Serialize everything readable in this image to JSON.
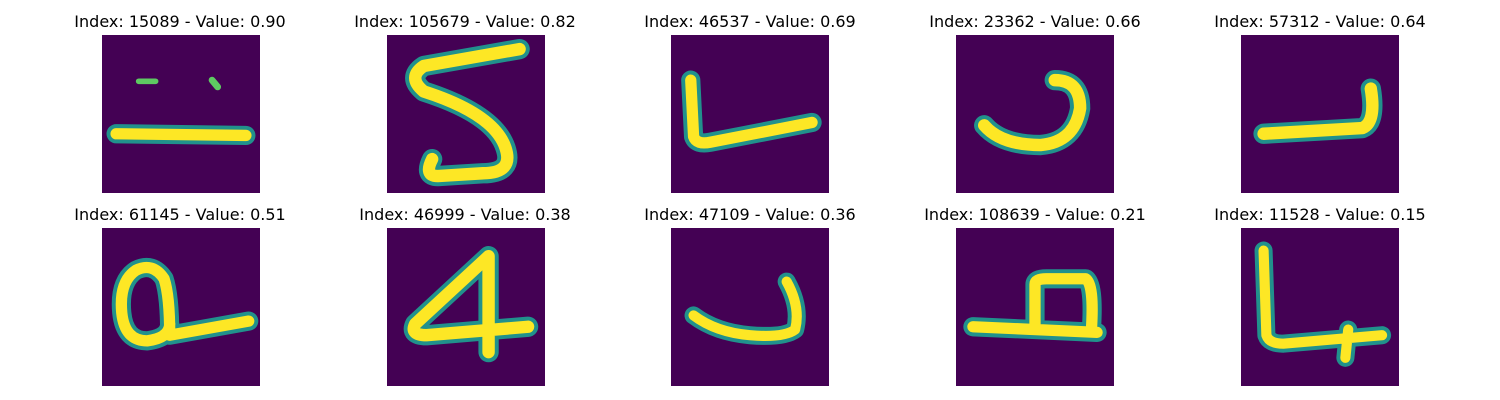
{
  "figure": {
    "colormap": "viridis",
    "colors": {
      "background": "#440154",
      "edge": "#21918c",
      "mid": "#5ec962",
      "peak": "#fde725"
    },
    "panels": [
      {
        "title": "Index: 15089 - Value: 0.90",
        "glyph": "underscore-digit"
      },
      {
        "title": "Index: 105679 - Value: 0.82",
        "glyph": "digit-5"
      },
      {
        "title": "Index: 46537 - Value: 0.69",
        "glyph": "l-shape"
      },
      {
        "title": "Index: 23362 - Value: 0.66",
        "glyph": "hook-shape"
      },
      {
        "title": "Index: 57312 - Value: 0.64",
        "glyph": "reverse-l-shape"
      },
      {
        "title": "Index: 61145 - Value: 0.51",
        "glyph": "loop-shape"
      },
      {
        "title": "Index: 46999 - Value: 0.38",
        "glyph": "digit-4"
      },
      {
        "title": "Index: 47109 - Value: 0.36",
        "glyph": "hook-shape"
      },
      {
        "title": "Index: 108639 - Value: 0.21",
        "glyph": "box-shape"
      },
      {
        "title": "Index: 11528 - Value: 0.15",
        "glyph": "l-shape"
      }
    ]
  }
}
